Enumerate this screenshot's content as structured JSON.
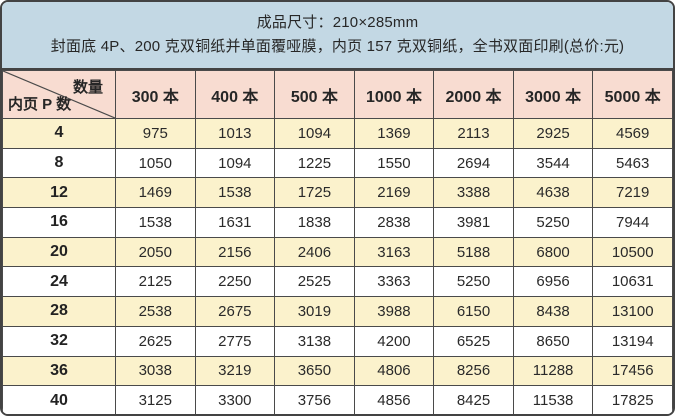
{
  "header": {
    "line1": "成品尺寸：210×285mm",
    "line2": "封面底 4P、200 克双铜纸并单面覆哑膜，内页 157 克双铜纸，全书双面印刷(总价:元)"
  },
  "table": {
    "corner": {
      "top_right": "数量",
      "bottom_left": "内页 P 数"
    },
    "columns": [
      "300 本",
      "400 本",
      "500 本",
      "1000 本",
      "2000 本",
      "3000 本",
      "5000 本"
    ],
    "rows": [
      {
        "pages": "4",
        "prices": [
          "975",
          "1013",
          "1094",
          "1369",
          "2113",
          "2925",
          "4569"
        ]
      },
      {
        "pages": "8",
        "prices": [
          "1050",
          "1094",
          "1225",
          "1550",
          "2694",
          "3544",
          "5463"
        ]
      },
      {
        "pages": "12",
        "prices": [
          "1469",
          "1538",
          "1725",
          "2169",
          "3388",
          "4638",
          "7219"
        ]
      },
      {
        "pages": "16",
        "prices": [
          "1538",
          "1631",
          "1838",
          "2838",
          "3981",
          "5250",
          "7944"
        ]
      },
      {
        "pages": "20",
        "prices": [
          "2050",
          "2156",
          "2406",
          "3163",
          "5188",
          "6800",
          "10500"
        ]
      },
      {
        "pages": "24",
        "prices": [
          "2125",
          "2250",
          "2525",
          "3363",
          "5250",
          "6956",
          "10631"
        ]
      },
      {
        "pages": "28",
        "prices": [
          "2538",
          "2675",
          "3019",
          "3988",
          "6150",
          "8438",
          "13100"
        ]
      },
      {
        "pages": "32",
        "prices": [
          "2625",
          "2775",
          "3138",
          "4200",
          "6525",
          "8650",
          "13194"
        ]
      },
      {
        "pages": "36",
        "prices": [
          "3038",
          "3219",
          "3650",
          "4806",
          "8256",
          "11288",
          "17456"
        ]
      },
      {
        "pages": "40",
        "prices": [
          "3125",
          "3300",
          "3756",
          "4856",
          "8425",
          "11538",
          "17825"
        ]
      }
    ]
  },
  "colors": {
    "banner_bg": "#c3d8e4",
    "header_row_bg": "#f8dcd1",
    "alt_row_bg": "#fbf2cc",
    "row_bg": "#ffffff",
    "border": "#4a4a4a",
    "text": "#262626"
  }
}
